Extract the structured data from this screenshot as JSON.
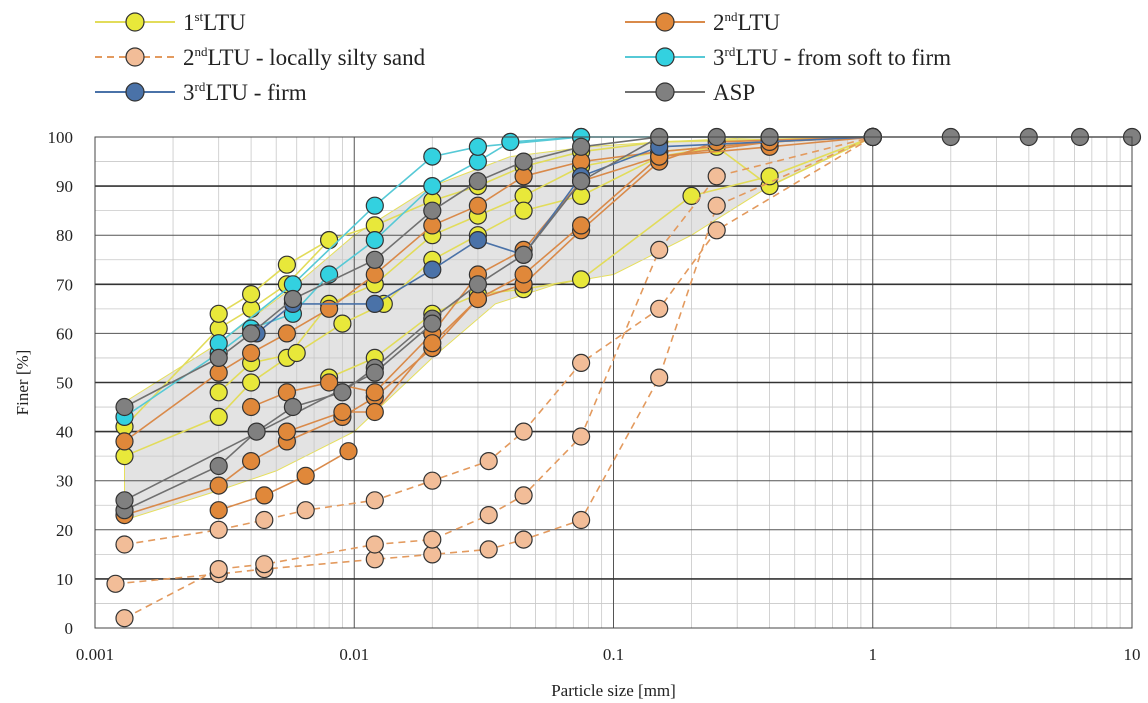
{
  "chart_data": {
    "type": "scatter",
    "title": "",
    "xlabel": "Particle size [mm]",
    "ylabel": "Finer [%]",
    "xscale": "log",
    "xlim": [
      0.001,
      10
    ],
    "ylim": [
      0,
      100
    ],
    "x_ticks": [
      0.001,
      0.01,
      0.1,
      1,
      10
    ],
    "x_tick_labels": [
      "0.001",
      "0.01",
      "0.1",
      "1",
      "10"
    ],
    "y_ticks": [
      0,
      10,
      20,
      30,
      40,
      50,
      60,
      70,
      80,
      90,
      100
    ],
    "y_tick_labels": [
      "0",
      "10",
      "20",
      "30",
      "40",
      "50",
      "60",
      "70",
      "80",
      "90",
      "100"
    ],
    "grid": true,
    "legend_position": "top",
    "envelope": {
      "fill": "#d9d9d9",
      "lower": [
        [
          0.0013,
          22
        ],
        [
          0.003,
          28
        ],
        [
          0.005,
          32
        ],
        [
          0.01,
          40
        ],
        [
          0.02,
          55
        ],
        [
          0.035,
          66
        ],
        [
          0.06,
          70
        ],
        [
          0.1,
          72
        ],
        [
          0.2,
          80
        ],
        [
          0.4,
          90
        ],
        [
          1,
          100
        ]
      ],
      "upper": [
        [
          0.0013,
          46
        ],
        [
          0.003,
          58
        ],
        [
          0.006,
          70
        ],
        [
          0.01,
          80
        ],
        [
          0.02,
          90
        ],
        [
          0.04,
          96
        ],
        [
          0.08,
          98
        ],
        [
          0.15,
          99
        ],
        [
          0.4,
          100
        ],
        [
          1,
          100
        ]
      ]
    },
    "series": [
      {
        "name": "1stLTU",
        "label_main": "1",
        "label_sup": "st",
        "label_rest": "LTU",
        "color": "#e8e83a",
        "line": "#e2dc5a",
        "dash": false,
        "curves": [
          [
            [
              0.0013,
              35
            ],
            [
              0.003,
              43
            ],
            [
              0.004,
              50
            ],
            [
              0.0055,
              55
            ],
            [
              0.008,
              66
            ],
            [
              0.012,
              70
            ],
            [
              0.02,
              80
            ],
            [
              0.03,
              84
            ],
            [
              0.045,
              88
            ],
            [
              0.075,
              94
            ],
            [
              0.15,
              97
            ],
            [
              0.4,
              99
            ],
            [
              1,
              100
            ]
          ],
          [
            [
              0.0013,
              41
            ],
            [
              0.003,
              61
            ],
            [
              0.004,
              65
            ],
            [
              0.0055,
              70
            ],
            [
              0.008,
              79
            ],
            [
              0.012,
              82
            ],
            [
              0.02,
              87
            ],
            [
              0.03,
              90
            ],
            [
              0.045,
              94
            ],
            [
              0.075,
              97
            ],
            [
              0.15,
              99
            ],
            [
              1,
              100
            ]
          ],
          [
            [
              0.003,
              64
            ],
            [
              0.004,
              68
            ],
            [
              0.0055,
              74
            ],
            [
              0.008,
              79
            ]
          ],
          [
            [
              0.003,
              48
            ],
            [
              0.004,
              54
            ],
            [
              0.006,
              56
            ],
            [
              0.009,
              62
            ],
            [
              0.013,
              66
            ],
            [
              0.02,
              75
            ],
            [
              0.03,
              80
            ],
            [
              0.045,
              85
            ],
            [
              0.075,
              88
            ],
            [
              0.15,
              96
            ],
            [
              0.25,
              98
            ],
            [
              0.4,
              90
            ],
            [
              1,
              100
            ]
          ],
          [
            [
              0.008,
              51
            ],
            [
              0.012,
              55
            ],
            [
              0.02,
              64
            ],
            [
              0.03,
              68
            ],
            [
              0.045,
              69
            ],
            [
              0.075,
              71
            ],
            [
              0.2,
              88
            ],
            [
              0.4,
              92
            ],
            [
              1,
              100
            ]
          ]
        ]
      },
      {
        "name": "2ndLTU",
        "label_main": "2",
        "label_sup": "nd",
        "label_rest": "LTU",
        "color": "#e0883a",
        "line": "#d98a4a",
        "dash": false,
        "curves": [
          [
            [
              0.0013,
              38
            ],
            [
              0.003,
              52
            ],
            [
              0.004,
              56
            ],
            [
              0.0055,
              60
            ],
            [
              0.008,
              65
            ],
            [
              0.012,
              72
            ],
            [
              0.02,
              82
            ],
            [
              0.03,
              86
            ],
            [
              0.045,
              92
            ],
            [
              0.075,
              95
            ],
            [
              0.15,
              97
            ],
            [
              0.4,
              99
            ],
            [
              1,
              100
            ]
          ],
          [
            [
              0.0013,
              23
            ],
            [
              0.003,
              29
            ],
            [
              0.004,
              34
            ],
            [
              0.0055,
              38
            ],
            [
              0.009,
              43
            ],
            [
              0.012,
              47
            ],
            [
              0.02,
              57
            ],
            [
              0.03,
              67
            ],
            [
              0.045,
              70
            ],
            [
              0.075,
              81
            ],
            [
              0.15,
              95
            ],
            [
              0.25,
              99
            ],
            [
              1,
              100
            ]
          ],
          [
            [
              0.003,
              24
            ],
            [
              0.0045,
              27
            ],
            [
              0.0065,
              31
            ],
            [
              0.0095,
              36
            ]
          ],
          [
            [
              0.004,
              45
            ],
            [
              0.0055,
              48
            ],
            [
              0.008,
              50
            ],
            [
              0.012,
              48
            ],
            [
              0.02,
              60
            ],
            [
              0.03,
              72
            ],
            [
              0.045,
              77
            ],
            [
              0.075,
              91
            ],
            [
              0.15,
              96
            ],
            [
              0.4,
              98
            ],
            [
              1,
              100
            ]
          ],
          [
            [
              0.0055,
              40
            ],
            [
              0.009,
              44
            ],
            [
              0.012,
              44
            ],
            [
              0.02,
              58
            ],
            [
              0.03,
              67
            ],
            [
              0.045,
              72
            ],
            [
              0.075,
              82
            ],
            [
              0.15,
              96
            ],
            [
              0.4,
              99
            ],
            [
              1,
              100
            ]
          ]
        ]
      },
      {
        "name": "2ndLTU - locally silty sand",
        "label_main": "2",
        "label_sup": "nd",
        "label_rest": "LTU - locally silty sand",
        "color": "#f2bd98",
        "line": "#e39a5e",
        "dash": true,
        "curves": [
          [
            [
              0.0013,
              17
            ],
            [
              0.003,
              20
            ],
            [
              0.0045,
              22
            ],
            [
              0.0065,
              24
            ],
            [
              0.012,
              26
            ],
            [
              0.02,
              30
            ],
            [
              0.033,
              34
            ],
            [
              0.045,
              40
            ],
            [
              0.075,
              54
            ],
            [
              0.15,
              65
            ],
            [
              0.25,
              81
            ],
            [
              1,
              100
            ]
          ],
          [
            [
              0.0012,
              9
            ],
            [
              0.003,
              11
            ],
            [
              0.0045,
              12
            ],
            [
              0.012,
              14
            ],
            [
              0.02,
              15
            ],
            [
              0.033,
              16
            ],
            [
              0.045,
              18
            ],
            [
              0.075,
              22
            ],
            [
              0.15,
              51
            ],
            [
              0.25,
              86
            ],
            [
              1,
              100
            ]
          ],
          [
            [
              0.0013,
              2
            ],
            [
              0.003,
              12
            ],
            [
              0.0045,
              13
            ],
            [
              0.012,
              17
            ],
            [
              0.02,
              18
            ],
            [
              0.033,
              23
            ],
            [
              0.045,
              27
            ],
            [
              0.075,
              39
            ],
            [
              0.15,
              77
            ],
            [
              0.25,
              92
            ],
            [
              1,
              100
            ]
          ]
        ]
      },
      {
        "name": "3rdLTU - from soft to firm",
        "label_main": "3",
        "label_sup": "rd",
        "label_rest": "LTU - from soft to firm",
        "color": "#33d1e0",
        "line": "#56c9d6",
        "dash": false,
        "curves": [
          [
            [
              0.0013,
              43
            ],
            [
              0.003,
              56
            ],
            [
              0.004,
              61
            ],
            [
              0.0058,
              64
            ],
            [
              0.008,
              72
            ],
            [
              0.012,
              79
            ],
            [
              0.02,
              90
            ],
            [
              0.03,
              95
            ],
            [
              0.04,
              99
            ],
            [
              0.075,
              100
            ],
            [
              1,
              100
            ]
          ],
          [
            [
              0.003,
              58
            ],
            [
              0.0058,
              70
            ],
            [
              0.012,
              86
            ],
            [
              0.02,
              96
            ],
            [
              0.03,
              98
            ],
            [
              0.075,
              100
            ]
          ]
        ]
      },
      {
        "name": "3rdLTU - firm",
        "label_main": "3",
        "label_sup": "rd",
        "label_rest": "LTU - firm",
        "color": "#4a72a8",
        "line": "#4a72a8",
        "dash": false,
        "curves": [
          [
            [
              0.0042,
              60
            ],
            [
              0.0058,
              66
            ],
            [
              0.012,
              66
            ],
            [
              0.02,
              73
            ],
            [
              0.03,
              79
            ],
            [
              0.045,
              76
            ],
            [
              0.075,
              92
            ],
            [
              0.15,
              98
            ],
            [
              1,
              100
            ]
          ]
        ]
      },
      {
        "name": "ASP",
        "label_main": "ASP",
        "label_sup": "",
        "label_rest": "",
        "color": "#808080",
        "line": "#707070",
        "dash": false,
        "curves": [
          [
            [
              0.0013,
              45
            ],
            [
              0.003,
              55
            ],
            [
              0.004,
              60
            ],
            [
              0.0058,
              67
            ],
            [
              0.012,
              75
            ],
            [
              0.02,
              85
            ],
            [
              0.03,
              91
            ],
            [
              0.045,
              95
            ],
            [
              0.075,
              98
            ],
            [
              0.15,
              100
            ],
            [
              0.25,
              100
            ],
            [
              0.4,
              100
            ],
            [
              1,
              100
            ],
            [
              2,
              100
            ],
            [
              4,
              100
            ],
            [
              6.3,
              100
            ],
            [
              10,
              100
            ]
          ],
          [
            [
              0.0013,
              24
            ],
            [
              0.003,
              33
            ],
            [
              0.0042,
              40
            ],
            [
              0.0058,
              45
            ],
            [
              0.009,
              48
            ],
            [
              0.012,
              53
            ],
            [
              0.02,
              63
            ],
            [
              0.03,
              70
            ],
            [
              0.045,
              76
            ],
            [
              0.075,
              91
            ],
            [
              0.15,
              100
            ],
            [
              0.4,
              100
            ],
            [
              1,
              100
            ]
          ],
          [
            [
              0.0013,
              26
            ],
            [
              0.012,
              52
            ],
            [
              0.02,
              62
            ]
          ]
        ]
      }
    ]
  }
}
